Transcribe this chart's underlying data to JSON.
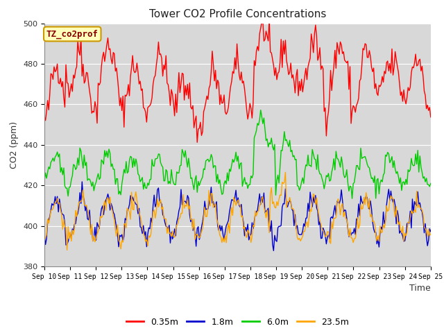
{
  "title": "Tower CO2 Profile Concentrations",
  "xlabel": "Time",
  "ylabel": "CO2 (ppm)",
  "ylim": [
    380,
    500
  ],
  "yticks": [
    380,
    400,
    420,
    440,
    460,
    480,
    500
  ],
  "n_points": 360,
  "days": 15,
  "start_day": 10,
  "end_day": 25,
  "colors": {
    "red": "#ff0000",
    "blue": "#0000cd",
    "green": "#00cc00",
    "orange": "#ffa500"
  },
  "legend_labels": [
    "0.35m",
    "1.8m",
    "6.0m",
    "23.5m"
  ],
  "annotation_text": "TZ_co2prof",
  "annotation_facecolor": "#ffffbb",
  "annotation_edgecolor": "#cc9900",
  "annotation_textcolor": "#880000",
  "bg_color": "#d8d8d8",
  "title_fontsize": 11,
  "label_fontsize": 9,
  "tick_fontsize": 8,
  "linewidth": 1.0,
  "red_base": 468,
  "red_diurnal_amp": 11,
  "red_diurnal_phase": 1.5,
  "green_base": 427,
  "green_diurnal_amp": 7,
  "blue_base": 404,
  "blue_diurnal_amp": 10,
  "orange_base": 403,
  "orange_diurnal_amp": 9
}
